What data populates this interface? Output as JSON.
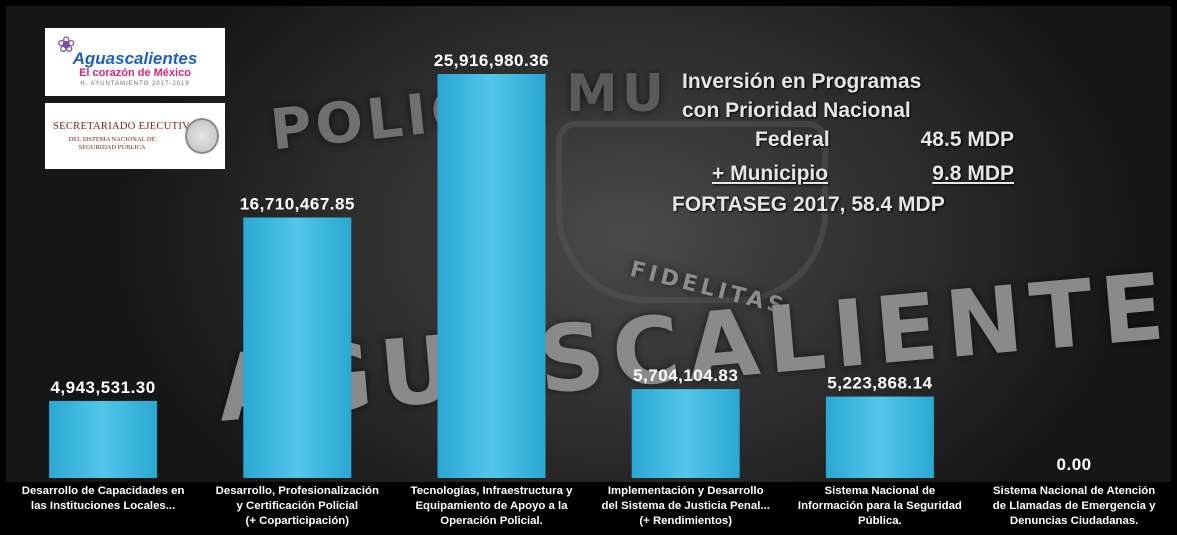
{
  "chart_data": {
    "type": "bar",
    "categories": [
      "Desarrollo de Capacidades en\nlas Instituciones Locales...",
      "Desarrollo, Profesionalización\ny Certificación Policial\n(+ Coparticipación)",
      "Tecnologías, Infraestructura y\nEquipamiento de Apoyo a la\nOperación Policial.",
      "Implementación y Desarrollo\ndel Sistema de Justicia Penal...\n(+ Rendimientos)",
      "Sistema Nacional de\nInformación para la Seguridad\nPública.",
      "Sistema Nacional de Atención\nde Llamadas de Emergencia y\nDenuncias Ciudadanas."
    ],
    "values": [
      4943531.3,
      16710467.85,
      25916980.36,
      5704104.83,
      5223868.14,
      0.0
    ],
    "value_labels": [
      "4,943,531.30",
      "16,710,467.85",
      "25,916,980.36",
      "5,704,104.83",
      "5,223,868.14",
      "0.00"
    ],
    "bar_color": "#41b9e0",
    "grid": false,
    "legend": "none"
  },
  "info": {
    "title_line1": "Inversión en Programas",
    "title_line2": "con Prioridad Nacional",
    "federal_label": "Federal",
    "federal_value": "48.5 MDP",
    "municipio_label": "+ Municipio",
    "municipio_value": "9.8 MDP",
    "total_line": "FORTASEG 2017,  58.4 MDP"
  },
  "logos": {
    "city_name": "Aguascalientes",
    "city_tagline": "El corazón de México",
    "city_sub": "H. AYUNTAMIENTO 2017-2019",
    "agency_title": "SECRETARIADO EJECUTIVO",
    "agency_sub": "DEL SISTEMA NACIONAL DE SEGURIDAD PÚBLICA"
  },
  "background": {
    "word_policia": "POLICÍA",
    "word_mu": "MU",
    "word_city": "AGUASCALIENTES",
    "word_motto": "FIDELITAS"
  }
}
